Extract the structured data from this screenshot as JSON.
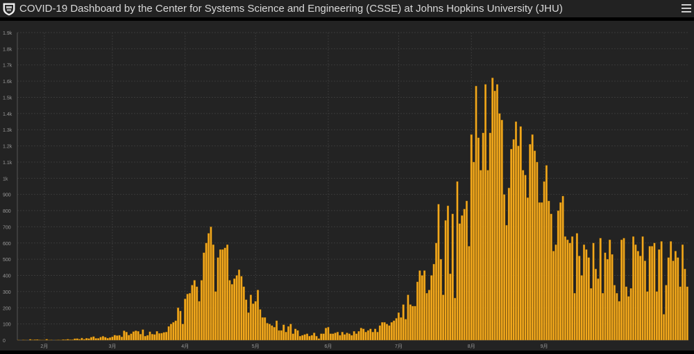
{
  "header": {
    "title": "COVID-19 Dashboard by the Center for Systems Science and Engineering (CSSE) at Johns Hopkins University (JHU)"
  },
  "colors": {
    "bar": "#f2a81d",
    "bar_edge": "#8a5a00",
    "background": "#232323",
    "grid": "#3a3a3a",
    "axis_text": "#9a9a9a"
  },
  "chart_data": {
    "type": "bar",
    "title": "",
    "xlabel": "",
    "ylabel": "",
    "ylim": [
      0,
      1900
    ],
    "y_ticks": [
      {
        "value": 0,
        "label": "0"
      },
      {
        "value": 100,
        "label": "100"
      },
      {
        "value": 200,
        "label": "200"
      },
      {
        "value": 300,
        "label": "300"
      },
      {
        "value": 400,
        "label": "400"
      },
      {
        "value": 500,
        "label": "500"
      },
      {
        "value": 600,
        "label": "600"
      },
      {
        "value": 700,
        "label": "700"
      },
      {
        "value": 800,
        "label": "800"
      },
      {
        "value": 900,
        "label": "900"
      },
      {
        "value": 1000,
        "label": "1k"
      },
      {
        "value": 1100,
        "label": "1.1k"
      },
      {
        "value": 1200,
        "label": "1.2k"
      },
      {
        "value": 1300,
        "label": "1.3k"
      },
      {
        "value": 1400,
        "label": "1.4k"
      },
      {
        "value": 1500,
        "label": "1.5k"
      },
      {
        "value": 1600,
        "label": "1.6k"
      },
      {
        "value": 1700,
        "label": "1.7k"
      },
      {
        "value": 1800,
        "label": "1.8k"
      },
      {
        "value": 1900,
        "label": "1.9k"
      }
    ],
    "x_ticks": [
      {
        "index": 11,
        "label": "2月"
      },
      {
        "index": 40,
        "label": "3月"
      },
      {
        "index": 71,
        "label": "4月"
      },
      {
        "index": 101,
        "label": "5月"
      },
      {
        "index": 132,
        "label": "6月"
      },
      {
        "index": 162,
        "label": "7月"
      },
      {
        "index": 193,
        "label": "8月"
      },
      {
        "index": 224,
        "label": "9月"
      }
    ],
    "grid": true,
    "legend": "none",
    "values": [
      1,
      0,
      2,
      1,
      0,
      5,
      2,
      3,
      4,
      2,
      1,
      1,
      6,
      1,
      2,
      0,
      1,
      2,
      1,
      4,
      3,
      6,
      3,
      3,
      9,
      10,
      6,
      13,
      6,
      12,
      10,
      18,
      22,
      11,
      11,
      19,
      24,
      18,
      12,
      16,
      21,
      31,
      28,
      30,
      20,
      58,
      50,
      31,
      40,
      53,
      58,
      55,
      37,
      65,
      25,
      30,
      52,
      37,
      35,
      55,
      42,
      43,
      48,
      50,
      85,
      100,
      110,
      120,
      200,
      180,
      100,
      255,
      285,
      290,
      340,
      370,
      330,
      240,
      370,
      540,
      600,
      660,
      700,
      590,
      300,
      510,
      560,
      560,
      570,
      590,
      370,
      345,
      380,
      400,
      435,
      395,
      330,
      250,
      170,
      280,
      225,
      240,
      310,
      190,
      140,
      140,
      105,
      100,
      90,
      80,
      120,
      60,
      60,
      95,
      50,
      85,
      100,
      40,
      70,
      60,
      25,
      30,
      35,
      40,
      25,
      30,
      45,
      25,
      10,
      40,
      40,
      75,
      80,
      40,
      40,
      45,
      50,
      30,
      50,
      35,
      45,
      40,
      30,
      55,
      40,
      55,
      75,
      70,
      50,
      60,
      70,
      50,
      70,
      50,
      90,
      110,
      110,
      100,
      90,
      110,
      120,
      135,
      170,
      140,
      220,
      130,
      280,
      220,
      210,
      210,
      360,
      430,
      400,
      430,
      290,
      310,
      400,
      470,
      600,
      840,
      500,
      280,
      740,
      830,
      410,
      780,
      260,
      980,
      720,
      770,
      810,
      860,
      580,
      1270,
      1100,
      1570,
      1250,
      1050,
      1280,
      1580,
      1050,
      1280,
      1620,
      1540,
      1580,
      1400,
      1360,
      900,
      710,
      940,
      1180,
      1240,
      1350,
      1200,
      1320,
      1050,
      1020,
      880,
      1210,
      1270,
      1170,
      1100,
      850,
      850,
      980,
      1080,
      860,
      780,
      550,
      590,
      800,
      850,
      890,
      640,
      620,
      600,
      640,
      290,
      660,
      520,
      400,
      590,
      560,
      510,
      320,
      600,
      440,
      380,
      630,
      290,
      540,
      500,
      620,
      530,
      340,
      290,
      240,
      620,
      630,
      330,
      270,
      320,
      640,
      590,
      550,
      520,
      640,
      490,
      300,
      580,
      580,
      600,
      300,
      560,
      610,
      160,
      340,
      510,
      610,
      490,
      550,
      510,
      330,
      590,
      440,
      330
    ]
  }
}
